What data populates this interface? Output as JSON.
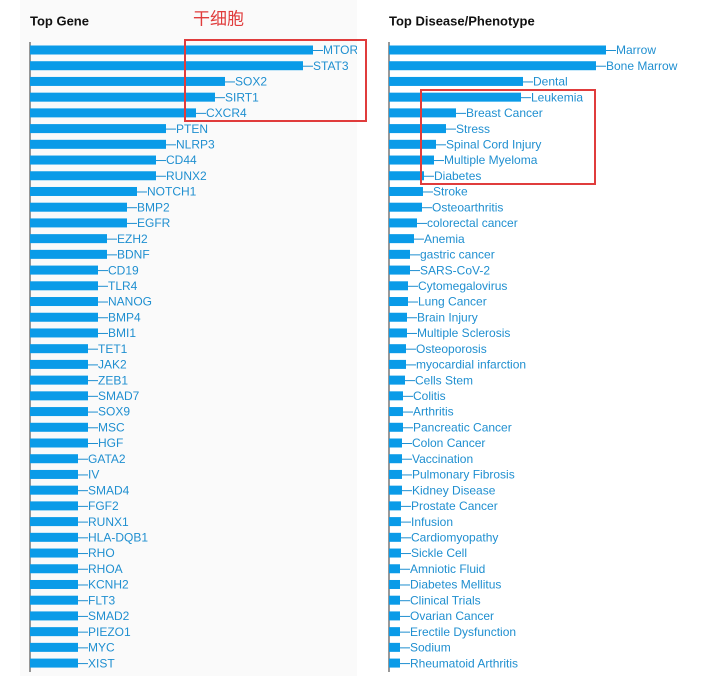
{
  "chart_data": [
    {
      "type": "bar",
      "orientation": "horizontal",
      "title": "Top Gene",
      "annotation": "干细胞",
      "color": "#0a9be8",
      "categories": [
        "MTOR",
        "STAT3",
        "SOX2",
        "SIRT1",
        "CXCR4",
        "PTEN",
        "NLRP3",
        "CD44",
        "RUNX2",
        "NOTCH1",
        "BMP2",
        "EGFR",
        "EZH2",
        "BDNF",
        "CD19",
        "TLR4",
        "NANOG",
        "BMP4",
        "BMI1",
        "TET1",
        "JAK2",
        "ZEB1",
        "SMAD7",
        "SOX9",
        "MSC",
        "HGF",
        "GATA2",
        "IV",
        "SMAD4",
        "FGF2",
        "RUNX1",
        "HLA-DQB1",
        "RHO",
        "RHOA",
        "KCNH2",
        "FLT3",
        "SMAD2",
        "PIEZO1",
        "MYC",
        "XIST"
      ],
      "values": [
        283,
        273,
        195,
        185,
        166,
        136,
        136,
        126,
        126,
        107,
        97,
        97,
        77,
        77,
        68,
        68,
        68,
        68,
        68,
        58,
        58,
        58,
        58,
        58,
        58,
        58,
        48,
        48,
        48,
        48,
        48,
        48,
        48,
        48,
        48,
        48,
        48,
        48,
        48,
        48
      ]
    },
    {
      "type": "bar",
      "orientation": "horizontal",
      "title": "Top Disease/Phenotype",
      "color": "#0a9be8",
      "categories": [
        "Marrow",
        "Bone Marrow",
        "Dental",
        "Leukemia",
        "Breast Cancer",
        "Stress",
        "Spinal Cord Injury",
        "Multiple Myeloma",
        "Diabetes",
        "Stroke",
        "Osteoarthritis",
        "colorectal cancer",
        "Anemia",
        "gastric cancer",
        "SARS-CoV-2",
        "Cytomegalovirus",
        "Lung Cancer",
        "Brain Injury",
        "Multiple Sclerosis",
        "Osteoporosis",
        "myocardial infarction",
        "Cells Stem",
        "Colitis",
        "Arthritis",
        "Pancreatic Cancer",
        "Colon Cancer",
        "Vaccination",
        "Pulmonary Fibrosis",
        "Kidney Disease",
        "Prostate Cancer",
        "Infusion",
        "Cardiomyopathy",
        "Sickle Cell",
        "Amniotic Fluid",
        "Diabetes Mellitus",
        "Clinical Trials",
        "Ovarian Cancer",
        "Erectile Dysfunction",
        "Sodium",
        "Rheumatoid Arthritis"
      ],
      "values": [
        217,
        207,
        134,
        132,
        67,
        57,
        47,
        45,
        35,
        34,
        33,
        28,
        25,
        21,
        21,
        19,
        19,
        18,
        18,
        17,
        17,
        16,
        14,
        14,
        14,
        13,
        13,
        13,
        13,
        12,
        12,
        12,
        12,
        11,
        11,
        11,
        11,
        11,
        11,
        11
      ]
    }
  ]
}
